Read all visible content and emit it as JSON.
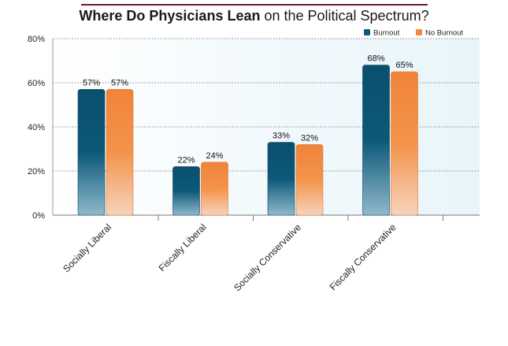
{
  "title_strong": "Where Do Physicians Lean",
  "title_rest": " on the Political Spectrum?",
  "chart_data": {
    "type": "bar",
    "categories": [
      "Socially Liberal",
      "Fiscally Liberal",
      "Socially Conservative",
      "Fiscally Conservative"
    ],
    "series": [
      {
        "name": "Burnout",
        "values": [
          57,
          22,
          33,
          68
        ],
        "color": "#0d5878"
      },
      {
        "name": "No Burnout",
        "values": [
          57,
          24,
          32,
          65
        ],
        "color": "#f28a3c"
      }
    ],
    "ylim": [
      0,
      80
    ],
    "yticks": [
      "0%",
      "20%",
      "40%",
      "60%",
      "80%"
    ],
    "data_labels": [
      [
        "57%",
        "22%",
        "33%",
        "68%"
      ],
      [
        "57%",
        "24%",
        "32%",
        "65%"
      ]
    ],
    "grid": true,
    "legend_position": "top-right"
  }
}
